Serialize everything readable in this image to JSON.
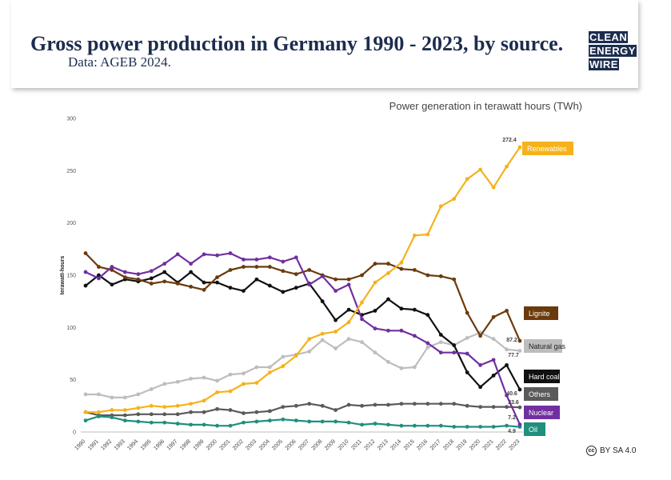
{
  "header": {
    "title": "Gross power production in Germany 1990 - 2023, by source.",
    "subtitle": "Data: AGEB 2024."
  },
  "logo": {
    "line1": "CLEAN",
    "line2": "ENERGY",
    "line3": "WIRE"
  },
  "license": {
    "icon": "cc-icon",
    "text": "BY SA 4.0"
  },
  "chart_data": {
    "type": "line",
    "title": "Power generation in terawatt hours (TWh)",
    "ylabel": "terawatt-hours",
    "xlabel": "",
    "ylim": [
      0,
      300
    ],
    "yticks": [
      0,
      50,
      100,
      150,
      200,
      250,
      300
    ],
    "grid": false,
    "legend": "right-end labels",
    "x": [
      1990,
      1991,
      1992,
      1993,
      1994,
      1995,
      1996,
      1997,
      1998,
      1999,
      2000,
      2001,
      2002,
      2003,
      2004,
      2005,
      2006,
      2007,
      2008,
      2009,
      2010,
      2011,
      2012,
      2013,
      2014,
      2015,
      2016,
      2017,
      2018,
      2019,
      2020,
      2021,
      2022,
      2023
    ],
    "x_labels": [
      "1990",
      "1991",
      "1992",
      "1993",
      "1994",
      "1995",
      "1996",
      "1997",
      "1998",
      "1999",
      "2000",
      "2001",
      "2002",
      "2003",
      "2004",
      "2005",
      "2006",
      "2007",
      "2008",
      "2009",
      "2010",
      "2011",
      "2012",
      "2013",
      "2014",
      "2015",
      "2016",
      "2017",
      "2018",
      "2019",
      "2020",
      "2021",
      "2022",
      "2023"
    ],
    "series": [
      {
        "name": "Renewables",
        "color": "#f5b21c",
        "end_label": "272.4",
        "values": [
          19,
          19,
          21,
          21,
          23,
          25,
          24,
          25,
          27,
          30,
          38,
          39,
          46,
          47,
          57,
          63,
          73,
          89,
          94,
          96,
          105,
          124,
          143,
          152,
          162,
          188,
          189,
          216,
          223,
          242,
          251,
          234,
          254,
          272.4
        ]
      },
      {
        "name": "Lignite",
        "color": "#6b3a0c",
        "end_label": "87.2",
        "values": [
          171,
          158,
          155,
          148,
          146,
          142,
          144,
          142,
          139,
          136,
          148,
          155,
          158,
          158,
          158,
          154,
          151,
          155,
          150,
          146,
          146,
          150,
          161,
          161,
          156,
          155,
          150,
          149,
          146,
          114,
          92,
          110,
          116,
          87.2
        ]
      },
      {
        "name": "Natural gas",
        "color": "#bdbdbd",
        "end_label": "77.7",
        "values": [
          36,
          36,
          33,
          33,
          36,
          41,
          46,
          48,
          51,
          52,
          49,
          55,
          56,
          62,
          62,
          72,
          74,
          77,
          88,
          80,
          89,
          86,
          76,
          67,
          61,
          62,
          81,
          86,
          83,
          90,
          95,
          89,
          79,
          77.7
        ]
      },
      {
        "name": "Hard coal",
        "color": "#111111",
        "end_label": "40.6",
        "values": [
          140,
          150,
          141,
          146,
          144,
          147,
          153,
          143,
          153,
          143,
          143,
          138,
          135,
          146,
          140,
          134,
          138,
          142,
          125,
          107,
          117,
          112,
          116,
          127,
          118,
          117,
          112,
          93,
          83,
          57,
          43,
          54,
          64,
          40.6
        ]
      },
      {
        "name": "Others",
        "color": "#5a5a5a",
        "end_label": "23.6",
        "values": [
          19,
          16,
          16,
          16,
          17,
          17,
          17,
          17,
          19,
          19,
          22,
          21,
          18,
          19,
          20,
          24,
          25,
          27,
          25,
          21,
          26,
          25,
          26,
          26,
          27,
          27,
          27,
          27,
          27,
          25,
          24,
          24,
          24,
          23.6
        ]
      },
      {
        "name": "Nuclear",
        "color": "#7030a0",
        "end_label": "7.2",
        "values": [
          153,
          147,
          158,
          153,
          151,
          154,
          161,
          170,
          161,
          170,
          169,
          171,
          165,
          165,
          167,
          163,
          167,
          141,
          149,
          135,
          141,
          108,
          99,
          97,
          97,
          92,
          85,
          76,
          76,
          75,
          64,
          69,
          35,
          7.2
        ]
      },
      {
        "name": "Oil",
        "color": "#1f8f7e",
        "end_label": "4.9",
        "values": [
          11,
          15,
          14,
          11,
          10,
          9,
          9,
          8,
          7,
          7,
          6,
          6,
          9,
          10,
          11,
          12,
          11,
          10,
          10,
          10,
          9,
          7,
          8,
          7,
          6,
          6,
          6,
          6,
          5,
          5,
          5,
          5,
          6,
          4.9
        ]
      }
    ]
  }
}
